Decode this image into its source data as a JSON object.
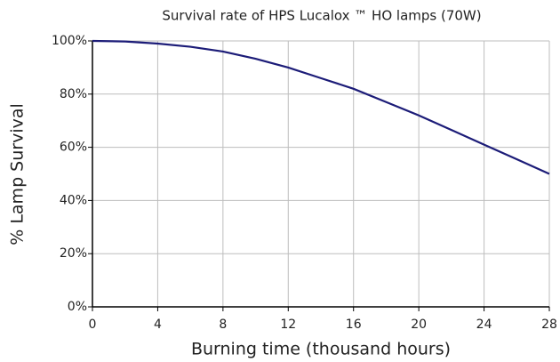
{
  "chart_data": {
    "type": "line",
    "title": "Survival rate of HPS Lucalox ™ HO lamps (70W)",
    "x_label": "Burning time (thousand hours)",
    "y_label": "% Lamp Survival",
    "x": [
      0,
      2,
      4,
      6,
      8,
      10,
      12,
      14,
      16,
      18,
      20,
      22,
      24,
      26,
      28
    ],
    "series": [
      {
        "name": "Survival",
        "color": "#1c1c78",
        "values": [
          100,
          99.8,
          99,
          97.8,
          96,
          93.3,
          90,
          86,
          82,
          77,
          72,
          66.5,
          61,
          55.5,
          50
        ]
      }
    ],
    "xlim": [
      0,
      28
    ],
    "xticks": [
      0,
      4,
      8,
      12,
      16,
      20,
      24,
      28
    ],
    "ylim": [
      0,
      100
    ],
    "yticks": [
      {
        "value": 0,
        "label": "0%"
      },
      {
        "value": 20,
        "label": "20%"
      },
      {
        "value": 40,
        "label": "40%"
      },
      {
        "value": 60,
        "label": "60%"
      },
      {
        "value": 80,
        "label": "80%"
      },
      {
        "value": 100,
        "label": "100%"
      }
    ],
    "grid": true
  }
}
